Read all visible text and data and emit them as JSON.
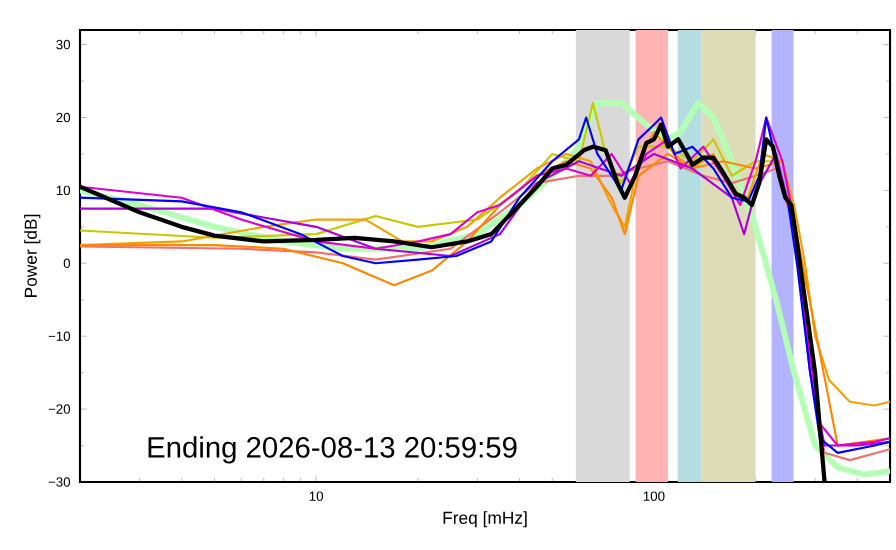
{
  "chart_data": {
    "type": "line",
    "xlabel": "Freq [mHz]",
    "ylabel": "Power [dB]",
    "log": "x",
    "xlim": [
      2,
      500
    ],
    "ylim": [
      -30,
      32
    ],
    "xticks": [
      {
        "value": 2,
        "label": null
      },
      {
        "value": 3,
        "label": null
      },
      {
        "value": 4,
        "label": null
      },
      {
        "value": 5,
        "label": null
      },
      {
        "value": 6,
        "label": null
      },
      {
        "value": 7,
        "label": null
      },
      {
        "value": 8,
        "label": null
      },
      {
        "value": 9,
        "label": null
      },
      10,
      {
        "value": 20,
        "label": null
      },
      {
        "value": 30,
        "label": null
      },
      {
        "value": 40,
        "label": null
      },
      {
        "value": 50,
        "label": null
      },
      {
        "value": 60,
        "label": null
      },
      {
        "value": 70,
        "label": null
      },
      {
        "value": 80,
        "label": null
      },
      {
        "value": 90,
        "label": null
      },
      100,
      {
        "value": 200,
        "label": null
      },
      {
        "value": 300,
        "label": null
      },
      {
        "value": 400,
        "label": null
      }
    ],
    "yticks": [
      {
        "value": -30,
        "label": "−30"
      },
      {
        "value": -25,
        "label": null
      },
      {
        "value": -20,
        "label": "−20"
      },
      {
        "value": -15,
        "label": null
      },
      {
        "value": -10,
        "label": "−10"
      },
      {
        "value": -5,
        "label": null
      },
      0,
      {
        "value": 5,
        "label": null
      },
      10,
      {
        "value": 15,
        "label": null
      },
      20,
      {
        "value": 25,
        "label": null
      },
      30
    ],
    "bands": [
      {
        "axis": "x",
        "from": 58.7,
        "to": 84.8,
        "color": "#d9d9d9"
      },
      {
        "axis": "x",
        "from": 88.3,
        "to": 110,
        "color": "#ffb3b3"
      },
      {
        "axis": "x",
        "from": 117.6,
        "to": 138,
        "color": "#b3dde0"
      },
      {
        "axis": "x",
        "from": 138,
        "to": 200,
        "color": "#dcdcb8"
      },
      {
        "axis": "x",
        "from": 223,
        "to": 259,
        "color": "#b3b3ff"
      }
    ],
    "annotations": [
      "Ending 2026-08-13 20:59:59"
    ],
    "series": [
      {
        "color": "#b3ffb3",
        "x": [
          2,
          3,
          5,
          8,
          12,
          20,
          30,
          40,
          50,
          60,
          68,
          80,
          95,
          110,
          120,
          135,
          150,
          170,
          200,
          230,
          260,
          300,
          350,
          420,
          500
        ],
        "values": [
          10,
          8,
          5,
          3,
          2,
          2,
          4,
          8,
          12,
          16,
          22,
          22,
          19,
          17,
          18,
          22,
          20,
          14,
          5,
          -5,
          -15,
          -25,
          -28,
          -29,
          -28.5
        ]
      },
      {
        "color": "#c8c800",
        "x": [
          2,
          5,
          10,
          15,
          20,
          30,
          40,
          50,
          60,
          66,
          72,
          80,
          90,
          110,
          130,
          150,
          170,
          200,
          230,
          260,
          280
        ],
        "values": [
          4.5,
          3.5,
          4,
          6.5,
          5,
          6,
          10,
          15,
          14,
          22,
          15,
          11,
          16,
          16,
          14,
          17,
          12,
          14,
          14,
          5,
          -3
        ]
      },
      {
        "color": "#f07070",
        "x": [
          2,
          6,
          10,
          15,
          25,
          35,
          45,
          60,
          75,
          90,
          110,
          140,
          170,
          200,
          230,
          260,
          290,
          320,
          380,
          500
        ],
        "values": [
          2.3,
          2,
          1.5,
          0.5,
          2,
          7,
          11,
          12,
          12,
          13,
          14,
          12,
          11,
          12,
          13,
          5,
          -15,
          -26,
          -27,
          -25.5
        ]
      },
      {
        "color": "#f5a000",
        "x": [
          2,
          4,
          7,
          10,
          14,
          18,
          22,
          28,
          35,
          45,
          55,
          65,
          75,
          82,
          90,
          100,
          115,
          130,
          150,
          170,
          190,
          210,
          240,
          260,
          280,
          300,
          330,
          380,
          450,
          500
        ],
        "values": [
          2.5,
          3,
          5,
          6,
          6,
          3,
          3,
          5,
          9,
          13,
          15,
          14,
          8,
          5,
          14,
          18,
          15,
          13,
          15,
          10,
          9,
          15,
          14,
          8,
          0,
          -10,
          -16,
          -19,
          -19.5,
          -19
        ]
      },
      {
        "color": "#ff8800",
        "x": [
          2,
          5,
          8,
          12,
          17,
          22,
          28,
          35,
          45,
          55,
          65,
          75,
          82,
          90,
          110,
          130,
          160,
          200,
          240,
          270,
          300,
          350,
          500
        ],
        "values": [
          2.5,
          2.5,
          2,
          0,
          -3,
          -1,
          3,
          8,
          12,
          14,
          13,
          9,
          4,
          12,
          15,
          13,
          14,
          13,
          14,
          2,
          null,
          -25,
          -24
        ]
      },
      {
        "color": "#aa00dd",
        "x": [
          2,
          5,
          10,
          15,
          25,
          35,
          45,
          60,
          80,
          100,
          130,
          170,
          185,
          200,
          230,
          260,
          290,
          320,
          400,
          500
        ],
        "values": [
          7.5,
          7.5,
          5,
          2,
          1,
          4,
          11,
          14,
          12,
          15,
          13,
          9,
          4,
          10,
          15,
          5,
          -15,
          -25,
          -25,
          -24.5
        ]
      },
      {
        "color": "#dd00cc",
        "x": [
          2,
          4,
          6,
          10,
          15,
          20,
          25,
          30,
          35,
          45,
          55,
          65,
          75,
          85,
          95,
          110,
          120,
          140,
          160,
          180,
          200,
          215,
          240,
          260,
          280,
          310,
          350,
          450,
          500
        ],
        "values": [
          10.5,
          9,
          6,
          3,
          2,
          3,
          4,
          7,
          8,
          12,
          13,
          12,
          15,
          11,
          15,
          17,
          13,
          16,
          12,
          8,
          14,
          20,
          14,
          6,
          -8,
          -22,
          -25,
          -24.5,
          -24
        ]
      },
      {
        "color": "#0000ff",
        "x": [
          2,
          4,
          6,
          9,
          12,
          15,
          20,
          26,
          33,
          40,
          50,
          60,
          63,
          68,
          80,
          90,
          100,
          105,
          115,
          130,
          150,
          170,
          190,
          205,
          215,
          230,
          250,
          265,
          290,
          310,
          350,
          450,
          500
        ],
        "values": [
          9,
          8.5,
          7,
          4,
          1,
          0,
          0.5,
          1,
          3,
          9,
          14,
          17,
          20,
          15,
          10,
          17,
          19,
          20,
          15,
          16,
          13,
          9,
          8.5,
          12,
          20,
          14,
          8,
          0,
          -15,
          -24,
          -26,
          -25,
          -24.5
        ]
      },
      {
        "color": "#000000",
        "x": [
          2,
          3,
          4,
          5,
          7,
          10,
          13,
          17,
          22,
          28,
          33,
          40,
          45,
          50,
          55,
          62,
          66,
          72,
          78,
          82,
          88,
          95,
          100,
          105,
          110,
          118,
          125,
          130,
          140,
          150,
          160,
          175,
          185,
          195,
          205,
          215,
          225,
          235,
          245,
          255,
          265,
          280,
          300,
          320
        ],
        "values": [
          10.5,
          7,
          5,
          3.8,
          3,
          3.2,
          3.5,
          3,
          2.2,
          3,
          4,
          8,
          10.5,
          13,
          13.5,
          15.5,
          16,
          15.5,
          11,
          9,
          12,
          16.5,
          17,
          19,
          16,
          17,
          15,
          13.5,
          14.5,
          14.5,
          12.5,
          9.5,
          9,
          8,
          11,
          17,
          16,
          12,
          9,
          8,
          3,
          -5,
          -15,
          -30
        ]
      }
    ]
  }
}
